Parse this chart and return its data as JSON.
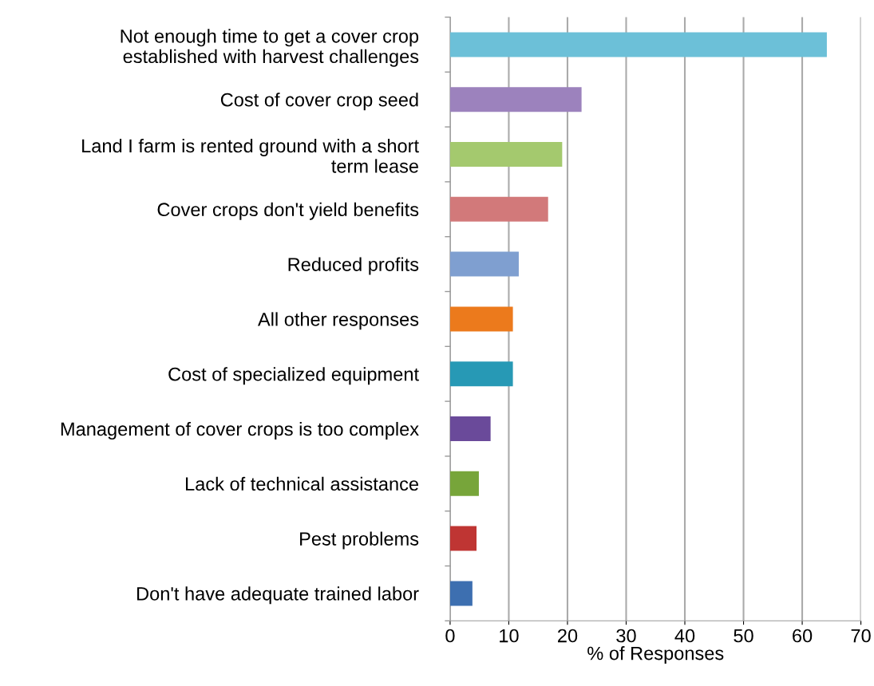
{
  "chart_data": {
    "type": "bar",
    "orientation": "horizontal",
    "xlabel": "% of Responses",
    "categories": [
      "Not enough time to get a cover crop\nestablished with harvest challenges",
      "Cost of cover crop seed",
      "Land I farm is rented ground with a short\nterm lease",
      "Cover crops don't yield benefits",
      "Reduced profits",
      "All other responses",
      "Cost of specialized equipment",
      "Management of cover crops is too complex",
      "Lack of technical assistance",
      "Pest problems",
      "Don't have adequate trained labor"
    ],
    "values": [
      64.2,
      22.4,
      19.1,
      16.7,
      11.7,
      10.7,
      10.7,
      6.9,
      4.9,
      4.5,
      3.8
    ],
    "colors": [
      "#6cc0d8",
      "#9c82bd",
      "#a4c96e",
      "#d2797a",
      "#7f9fd0",
      "#ec7a1c",
      "#2799b5",
      "#6a4a9a",
      "#77a53a",
      "#bf3533",
      "#3d6fb0"
    ],
    "xlim": [
      0,
      70
    ],
    "xticks": [
      0,
      10,
      20,
      30,
      40,
      50,
      60,
      70
    ],
    "grid": "x"
  }
}
